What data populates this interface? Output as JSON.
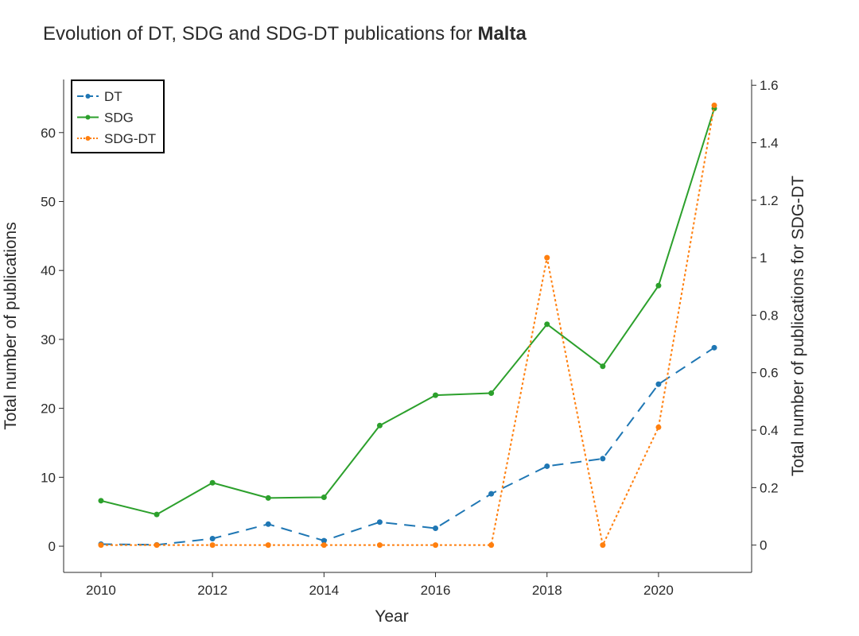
{
  "title": {
    "prefix": "Evolution of DT, SDG and SDG-DT publications for ",
    "country": "Malta"
  },
  "chart_data": {
    "type": "line",
    "title": "Evolution of DT, SDG and SDG-DT publications for Malta",
    "xlabel": "Year",
    "ylabel_left": "Total number of publications",
    "ylabel_right": "Total number of publications for SDG-DT",
    "x": [
      2010,
      2011,
      2012,
      2013,
      2014,
      2015,
      2016,
      2017,
      2018,
      2019,
      2020,
      2021
    ],
    "x_ticks": [
      2010,
      2012,
      2014,
      2016,
      2018,
      2020
    ],
    "xlim": [
      2009.33,
      2021.67
    ],
    "ylim_left": [
      -3.8,
      67.7
    ],
    "y_ticks_left": [
      0,
      10,
      20,
      30,
      40,
      50,
      60
    ],
    "ylim_right": [
      -0.095,
      1.62
    ],
    "y_ticks_right": [
      0,
      0.2,
      0.4,
      0.6,
      0.8,
      1,
      1.2,
      1.4,
      1.6
    ],
    "grid": false,
    "legend_position": "top-left",
    "series": [
      {
        "name": "DT",
        "axis": "left",
        "color": "#1f77b4",
        "dash": "dashed",
        "values": [
          0.3,
          0.2,
          1.1,
          3.2,
          0.8,
          3.5,
          2.6,
          7.6,
          11.6,
          12.7,
          23.5,
          28.8
        ]
      },
      {
        "name": "SDG",
        "axis": "left",
        "color": "#2ca02c",
        "dash": "solid",
        "values": [
          6.6,
          4.6,
          9.2,
          7.0,
          7.1,
          17.5,
          21.9,
          22.2,
          32.2,
          26.1,
          37.8,
          63.5
        ]
      },
      {
        "name": "SDG-DT",
        "axis": "right",
        "color": "#ff7f0e",
        "dash": "dotted",
        "values": [
          0,
          0,
          0,
          0,
          0,
          0,
          0,
          0,
          1.0,
          0,
          0.41,
          1.53
        ]
      }
    ]
  }
}
